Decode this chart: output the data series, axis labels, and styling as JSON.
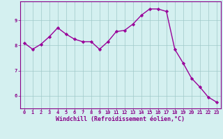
{
  "x": [
    0,
    1,
    2,
    3,
    4,
    5,
    6,
    7,
    8,
    9,
    10,
    11,
    12,
    13,
    14,
    15,
    16,
    17,
    18,
    19,
    20,
    21,
    22,
    23
  ],
  "y": [
    8.1,
    7.85,
    8.05,
    8.35,
    8.7,
    8.45,
    8.25,
    8.15,
    8.15,
    7.85,
    8.15,
    8.55,
    8.6,
    8.85,
    9.2,
    9.45,
    9.45,
    9.35,
    7.85,
    7.3,
    6.7,
    6.35,
    5.95,
    5.75
  ],
  "line_color": "#990099",
  "marker": "D",
  "marker_size": 2.2,
  "bg_color": "#d4f0f0",
  "grid_color": "#a0c8c8",
  "xlabel": "Windchill (Refroidissement éolien,°C)",
  "xlabel_color": "#880088",
  "xlim": [
    -0.5,
    23.5
  ],
  "ylim": [
    5.5,
    9.75
  ],
  "yticks": [
    6,
    7,
    8,
    9
  ],
  "xticks": [
    0,
    1,
    2,
    3,
    4,
    5,
    6,
    7,
    8,
    9,
    10,
    11,
    12,
    13,
    14,
    15,
    16,
    17,
    18,
    19,
    20,
    21,
    22,
    23
  ],
  "tick_color": "#880088",
  "tick_fontsize": 5.0,
  "xlabel_fontsize": 6.0,
  "spine_color": "#880088",
  "linewidth": 1.0
}
